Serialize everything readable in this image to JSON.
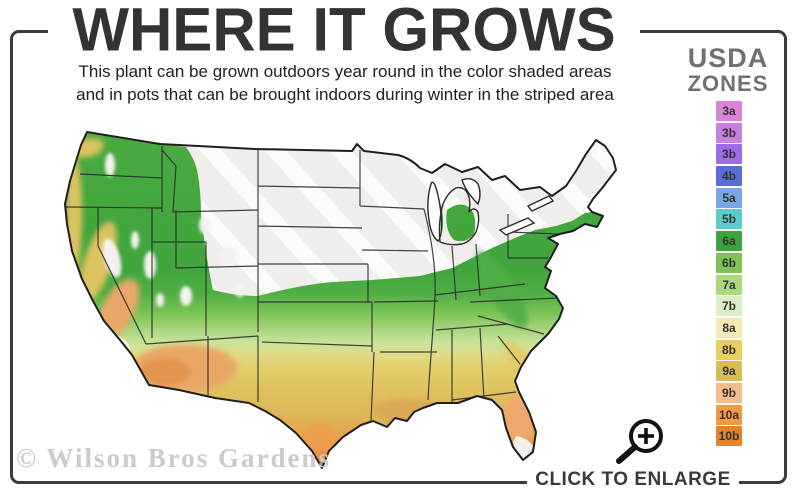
{
  "title": "WHERE IT GROWS",
  "subtitle": {
    "line1": "This plant can be grown outdoors year round in the color shaded areas",
    "line2": "and in pots that can be brought indoors during winter in the striped area"
  },
  "legend": {
    "heading_line1": "USDA",
    "heading_line2": "ZONES",
    "zones": [
      {
        "label": "3a",
        "color": "#d884d8"
      },
      {
        "label": "3b",
        "color": "#c77fe0"
      },
      {
        "label": "3b",
        "color": "#9e6ce6"
      },
      {
        "label": "4b",
        "color": "#5a6fd6"
      },
      {
        "label": "5a",
        "color": "#78a7e6"
      },
      {
        "label": "5b",
        "color": "#5bcccc"
      },
      {
        "label": "6a",
        "color": "#3ba23c"
      },
      {
        "label": "6b",
        "color": "#7ec354"
      },
      {
        "label": "7a",
        "color": "#aad87f"
      },
      {
        "label": "7b",
        "color": "#dbeec6"
      },
      {
        "label": "8a",
        "color": "#f2e9b5"
      },
      {
        "label": "8b",
        "color": "#e9cf5d"
      },
      {
        "label": "9a",
        "color": "#d9ba55"
      },
      {
        "label": "9b",
        "color": "#f4bd8c"
      },
      {
        "label": "10a",
        "color": "#f19a41"
      },
      {
        "label": "10b",
        "color": "#e28330"
      }
    ]
  },
  "map": {
    "description": "US map shaded by USDA hardiness zone; striped gray area in the north",
    "palette": {
      "not_hardy_base": "#efeeea",
      "stripe": "#fbfbf9",
      "green": "#3fa53c",
      "yellow": "#e3cf6a",
      "orange": "#e18f3b"
    }
  },
  "watermark": "© Wilson Bros Gardens",
  "enlarge": {
    "label": "CLICK TO ENLARGE",
    "icon": "magnifier-plus-icon"
  },
  "colors": {
    "frame": "#3b3b3b",
    "title_text": "#333333",
    "legend_heading": "#707070"
  }
}
